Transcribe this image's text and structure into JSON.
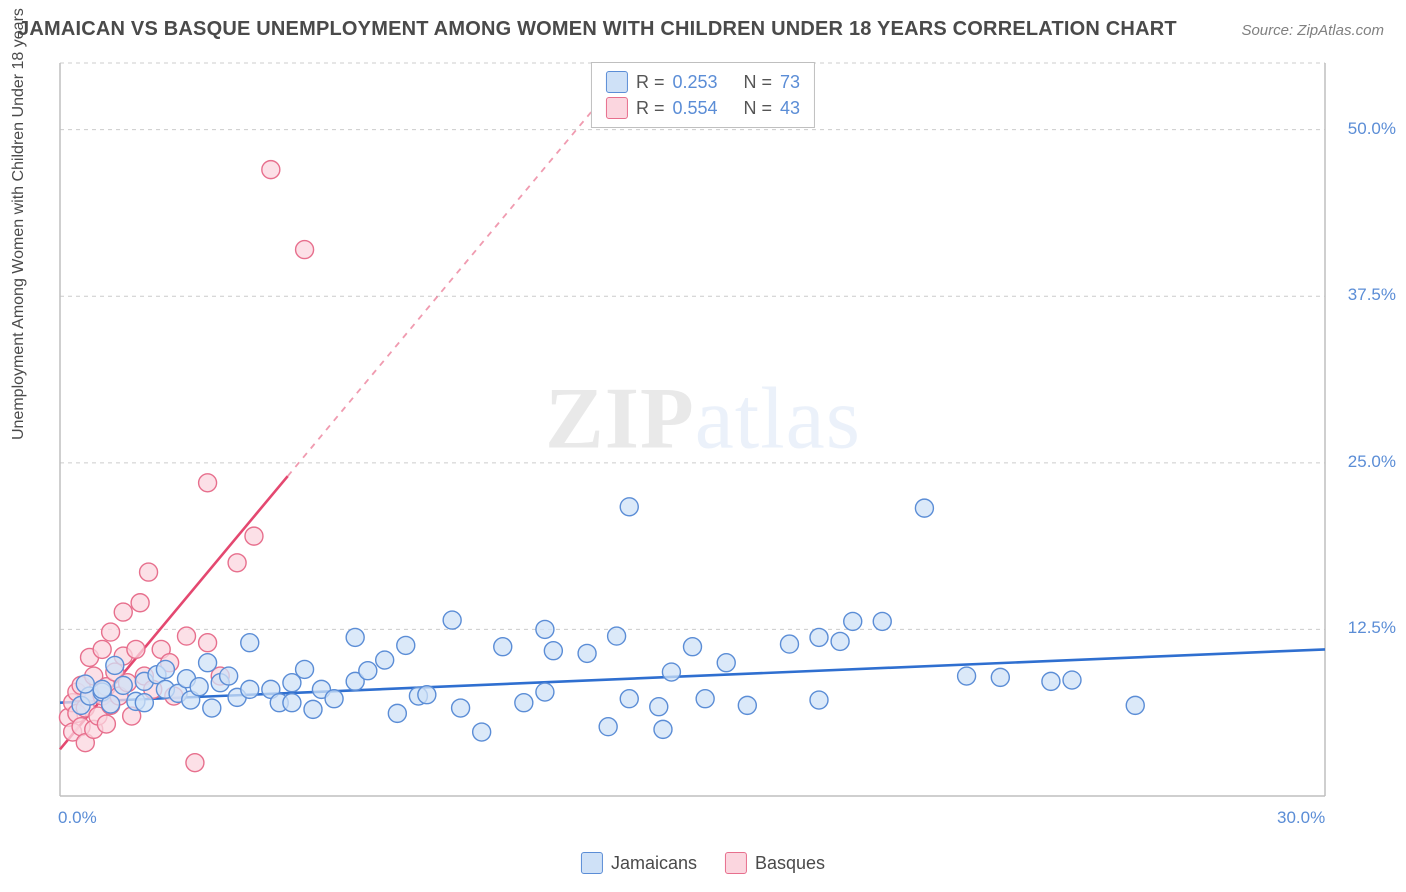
{
  "title": "JAMAICAN VS BASQUE UNEMPLOYMENT AMONG WOMEN WITH CHILDREN UNDER 18 YEARS CORRELATION CHART",
  "source": "Source: ZipAtlas.com",
  "watermark_strong": "ZIP",
  "watermark_light": "atlas",
  "y_axis_title": "Unemployment Among Women with Children Under 18 years",
  "chart": {
    "type": "scatter",
    "background_color": "#ffffff",
    "grid_color": "#cccccc",
    "axis_color": "#bfbfbf",
    "xlim": [
      0,
      30
    ],
    "ylim": [
      0,
      55
    ],
    "x_ticks": [
      0,
      30
    ],
    "x_tick_labels": [
      "0.0%",
      "30.0%"
    ],
    "y_ticks": [
      12.5,
      25.0,
      37.5,
      50.0
    ],
    "y_tick_labels": [
      "12.5%",
      "25.0%",
      "37.5%",
      "50.0%"
    ],
    "marker_radius": 9,
    "marker_stroke_width": 1.4,
    "trend_line_width": 2.6,
    "trend_dash": "6 6",
    "series": [
      {
        "name": "Jamaicans",
        "fill": "#cfe1f7",
        "stroke": "#5b8dd6",
        "trend_color": "#2f6fd0",
        "r_value": "0.253",
        "n_value": "73",
        "trend": {
          "x1": 0,
          "y1": 7.0,
          "x2": 30,
          "y2": 11.0,
          "extend": false
        },
        "points": [
          [
            0.5,
            6.8
          ],
          [
            0.7,
            7.5
          ],
          [
            0.6,
            8.4
          ],
          [
            1.0,
            7.8
          ],
          [
            1.2,
            6.9
          ],
          [
            1.0,
            8.0
          ],
          [
            1.5,
            8.3
          ],
          [
            1.8,
            7.1
          ],
          [
            1.3,
            9.8
          ],
          [
            2.0,
            7.0
          ],
          [
            2.0,
            8.6
          ],
          [
            2.3,
            9.1
          ],
          [
            2.5,
            8.0
          ],
          [
            2.5,
            9.5
          ],
          [
            2.8,
            7.7
          ],
          [
            3.0,
            8.8
          ],
          [
            3.1,
            7.2
          ],
          [
            3.3,
            8.2
          ],
          [
            3.5,
            10.0
          ],
          [
            3.6,
            6.6
          ],
          [
            3.8,
            8.5
          ],
          [
            4.0,
            9.0
          ],
          [
            4.2,
            7.4
          ],
          [
            4.5,
            8.0
          ],
          [
            4.5,
            11.5
          ],
          [
            5.0,
            8.0
          ],
          [
            5.2,
            7.0
          ],
          [
            5.5,
            8.5
          ],
          [
            5.5,
            7.0
          ],
          [
            5.8,
            9.5
          ],
          [
            6.0,
            6.5
          ],
          [
            6.2,
            8.0
          ],
          [
            6.5,
            7.3
          ],
          [
            7.0,
            8.6
          ],
          [
            7.0,
            11.9
          ],
          [
            7.3,
            9.4
          ],
          [
            7.7,
            10.2
          ],
          [
            8.0,
            6.2
          ],
          [
            8.2,
            11.3
          ],
          [
            8.5,
            7.5
          ],
          [
            8.7,
            7.6
          ],
          [
            9.3,
            13.2
          ],
          [
            9.5,
            6.6
          ],
          [
            10.0,
            4.8
          ],
          [
            10.5,
            11.2
          ],
          [
            11.0,
            7.0
          ],
          [
            11.5,
            12.5
          ],
          [
            11.5,
            7.8
          ],
          [
            11.7,
            10.9
          ],
          [
            12.5,
            10.7
          ],
          [
            13.0,
            5.2
          ],
          [
            13.2,
            12.0
          ],
          [
            13.5,
            7.3
          ],
          [
            13.5,
            21.7
          ],
          [
            14.2,
            6.7
          ],
          [
            14.3,
            5.0
          ],
          [
            14.5,
            9.3
          ],
          [
            15.0,
            11.2
          ],
          [
            15.8,
            10.0
          ],
          [
            16.3,
            6.8
          ],
          [
            17.3,
            11.4
          ],
          [
            18.0,
            7.2
          ],
          [
            18.5,
            11.6
          ],
          [
            18.8,
            13.1
          ],
          [
            19.5,
            13.1
          ],
          [
            20.5,
            21.6
          ],
          [
            21.5,
            9.0
          ],
          [
            22.3,
            8.9
          ],
          [
            23.5,
            8.6
          ],
          [
            24.0,
            8.7
          ],
          [
            25.5,
            6.8
          ],
          [
            18.0,
            11.9
          ],
          [
            15.3,
            7.3
          ]
        ]
      },
      {
        "name": "Basques",
        "fill": "#fbd6df",
        "stroke": "#e76f8d",
        "trend_color": "#e44870",
        "r_value": "0.554",
        "n_value": "43",
        "trend": {
          "x1": 0,
          "y1": 3.5,
          "x2": 5.4,
          "y2": 24.0,
          "extend": true,
          "extend_to_x": 13
        },
        "points": [
          [
            0.2,
            5.9
          ],
          [
            0.3,
            7.0
          ],
          [
            0.3,
            4.8
          ],
          [
            0.4,
            6.2
          ],
          [
            0.4,
            7.8
          ],
          [
            0.5,
            5.2
          ],
          [
            0.5,
            8.3
          ],
          [
            0.6,
            6.6
          ],
          [
            0.6,
            4.0
          ],
          [
            0.7,
            10.4
          ],
          [
            0.7,
            7.5
          ],
          [
            0.8,
            5.0
          ],
          [
            0.8,
            9.0
          ],
          [
            0.9,
            6.0
          ],
          [
            1.0,
            7.5
          ],
          [
            1.0,
            11.0
          ],
          [
            1.1,
            8.2
          ],
          [
            1.1,
            5.4
          ],
          [
            1.2,
            12.3
          ],
          [
            1.2,
            6.8
          ],
          [
            1.3,
            9.3
          ],
          [
            1.4,
            7.5
          ],
          [
            1.5,
            10.5
          ],
          [
            1.5,
            13.8
          ],
          [
            1.6,
            8.5
          ],
          [
            1.7,
            6.0
          ],
          [
            1.8,
            11.0
          ],
          [
            1.9,
            14.5
          ],
          [
            2.0,
            9.0
          ],
          [
            2.1,
            16.8
          ],
          [
            2.2,
            8.0
          ],
          [
            2.4,
            11.0
          ],
          [
            2.6,
            10.0
          ],
          [
            2.7,
            7.5
          ],
          [
            3.0,
            12.0
          ],
          [
            3.2,
            2.5
          ],
          [
            3.5,
            11.5
          ],
          [
            3.8,
            9.0
          ],
          [
            4.2,
            17.5
          ],
          [
            4.6,
            19.5
          ],
          [
            3.5,
            23.5
          ],
          [
            5.0,
            47.0
          ],
          [
            5.8,
            41.0
          ]
        ]
      }
    ]
  },
  "legend": {
    "items": [
      {
        "label": "Jamaicans",
        "fill": "#cfe1f7",
        "stroke": "#5b8dd6"
      },
      {
        "label": "Basques",
        "fill": "#fbd6df",
        "stroke": "#e76f8d"
      }
    ]
  },
  "stat_box": {
    "rows": [
      {
        "swatch_fill": "#cfe1f7",
        "swatch_stroke": "#5b8dd6",
        "r_label": "R =",
        "r_val": "0.253",
        "n_label": "N =",
        "n_val": "73"
      },
      {
        "swatch_fill": "#fbd6df",
        "swatch_stroke": "#e76f8d",
        "r_label": "R =",
        "r_val": "0.554",
        "n_label": "N =",
        "n_val": "43"
      }
    ]
  }
}
